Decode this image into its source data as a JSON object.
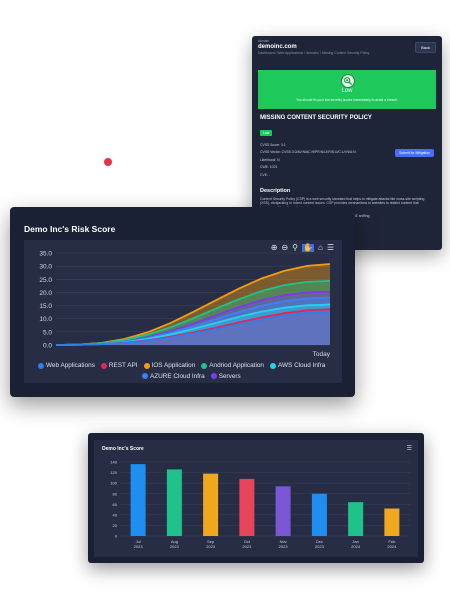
{
  "vuln_panel": {
    "label_small": "domain",
    "site": "demoinc.com",
    "breadcrumb": "Dashboard / Web Applications / demoinc / Missing Content Security Policy",
    "back_label": "Back",
    "severity_label": "Low",
    "severity_note": "You should fix your low severity issues immediately to avoid a breach.",
    "title": "MISSING CONTENT SECURITY POLICY",
    "submit_label": "Submit for Mitigation",
    "badge": "Low",
    "cvss_score": "CVSS Score: 3.1",
    "cvss_vector": "CVSS Vector: CVSS:3.0/AV:N/AC:H/PR:N/UI:R/S:U/C:L/I:N/A:N",
    "likelihood": "Likelihood: N",
    "cwe": "CWE: 1021",
    "cve": "CVE: -",
    "desc_heading": "Description",
    "desc_text": "Content Security Policy (CSP) is a web security standard that helps to mitigate attacks like cross-site scripting (XSS), clickjacking or mixed content issues. CSP provides mechanisms to websites to restrict content that browsers will be allowed to load.",
    "desc_text_2": "No CSP detected on this website. This could be at risk of a MIME sniffing",
    "colors": {
      "accent": "#1ec85a",
      "panel": "#1f2538"
    }
  },
  "risk_chart": {
    "toolbar_icons": [
      "zoom-in-icon",
      "zoom-out-icon",
      "magnify-icon",
      "pan-icon",
      "home-icon",
      "menu-icon"
    ],
    "chart_data": {
      "type": "area",
      "title": "Demo Inc's Risk Score",
      "xlabel": "",
      "ylabel": "",
      "x_tick_labels": [
        "Today"
      ],
      "yticks": [
        "0.0",
        "5.0",
        "10.0",
        "15.0",
        "20.0",
        "25.0",
        "30.0",
        "35.0"
      ],
      "ylim": [
        0,
        35
      ],
      "stacked": false,
      "x": [
        0,
        1,
        2,
        3,
        4,
        5,
        6,
        7,
        8,
        9,
        10,
        11,
        12
      ],
      "series": [
        {
          "name": "Web Applications",
          "color": "#2f7fe6",
          "values": [
            0,
            0.1,
            0.3,
            0.8,
            1.6,
            2.8,
            4.3,
            6.0,
            7.9,
            9.6,
            11.1,
            12.1,
            12.5
          ]
        },
        {
          "name": "REST API",
          "color": "#e0265b",
          "values": [
            0,
            0.1,
            0.3,
            0.9,
            1.8,
            3.1,
            4.7,
            6.6,
            8.6,
            10.5,
            12.1,
            13.2,
            13.6
          ]
        },
        {
          "name": "IOS Application",
          "color": "#f39c12",
          "values": [
            0,
            0.2,
            0.8,
            2.3,
            4.8,
            8.3,
            12.5,
            17.0,
            21.4,
            25.3,
            28.2,
            30.1,
            30.8
          ]
        },
        {
          "name": "Andriod Application",
          "color": "#1fc28a",
          "values": [
            0,
            0.2,
            0.7,
            1.9,
            3.9,
            6.7,
            10.1,
            13.8,
            17.4,
            20.5,
            22.8,
            24.0,
            24.4
          ]
        },
        {
          "name": "AWS Cloud Infra",
          "color": "#22d3ee",
          "values": [
            0,
            0.1,
            0.4,
            1.1,
            2.3,
            4.0,
            6.1,
            8.4,
            10.7,
            12.7,
            14.2,
            15.1,
            15.4
          ]
        },
        {
          "name": "AZURE Cloud Infra",
          "color": "#3b82f6",
          "values": [
            0,
            0.1,
            0.4,
            1.2,
            2.6,
            4.6,
            7.0,
            9.8,
            12.5,
            14.9,
            16.7,
            17.7,
            18.0
          ]
        },
        {
          "name": "Servers",
          "color": "#7c3aed",
          "values": [
            0,
            0.1,
            0.4,
            1.3,
            2.9,
            5.2,
            8.1,
            11.3,
            14.4,
            17.0,
            18.9,
            20.0,
            20.3
          ]
        }
      ],
      "grid": true,
      "legend": "bottom"
    }
  },
  "bar_chart": {
    "chart_data": {
      "type": "bar",
      "title": "Demo Inc's Score",
      "categories": [
        "Jul 2023",
        "Aug 2023",
        "Sep 2023",
        "Oct 2023",
        "Nov 2023",
        "Dec 2023",
        "Jan 2024",
        "Feb 2024"
      ],
      "category_lines": [
        [
          "Jul",
          "2023"
        ],
        [
          "Aug",
          "2023"
        ],
        [
          "Sep",
          "2023"
        ],
        [
          "Oct",
          "2023"
        ],
        [
          "Nov",
          "2023"
        ],
        [
          "Dec",
          "2023"
        ],
        [
          "Jan",
          "2024"
        ],
        [
          "Feb",
          "2024"
        ]
      ],
      "values": [
        136,
        126,
        118,
        108,
        94,
        80,
        64,
        52
      ],
      "colors": [
        "#1f8ef1",
        "#1fc28a",
        "#f0a81f",
        "#e8455a",
        "#7b57d6",
        "#1f8ef1",
        "#1fc28a",
        "#f0a81f"
      ],
      "yticks": [
        "0",
        "20",
        "40",
        "60",
        "80",
        "100",
        "120",
        "140"
      ],
      "ylim": [
        0,
        140
      ],
      "grid": true
    }
  }
}
